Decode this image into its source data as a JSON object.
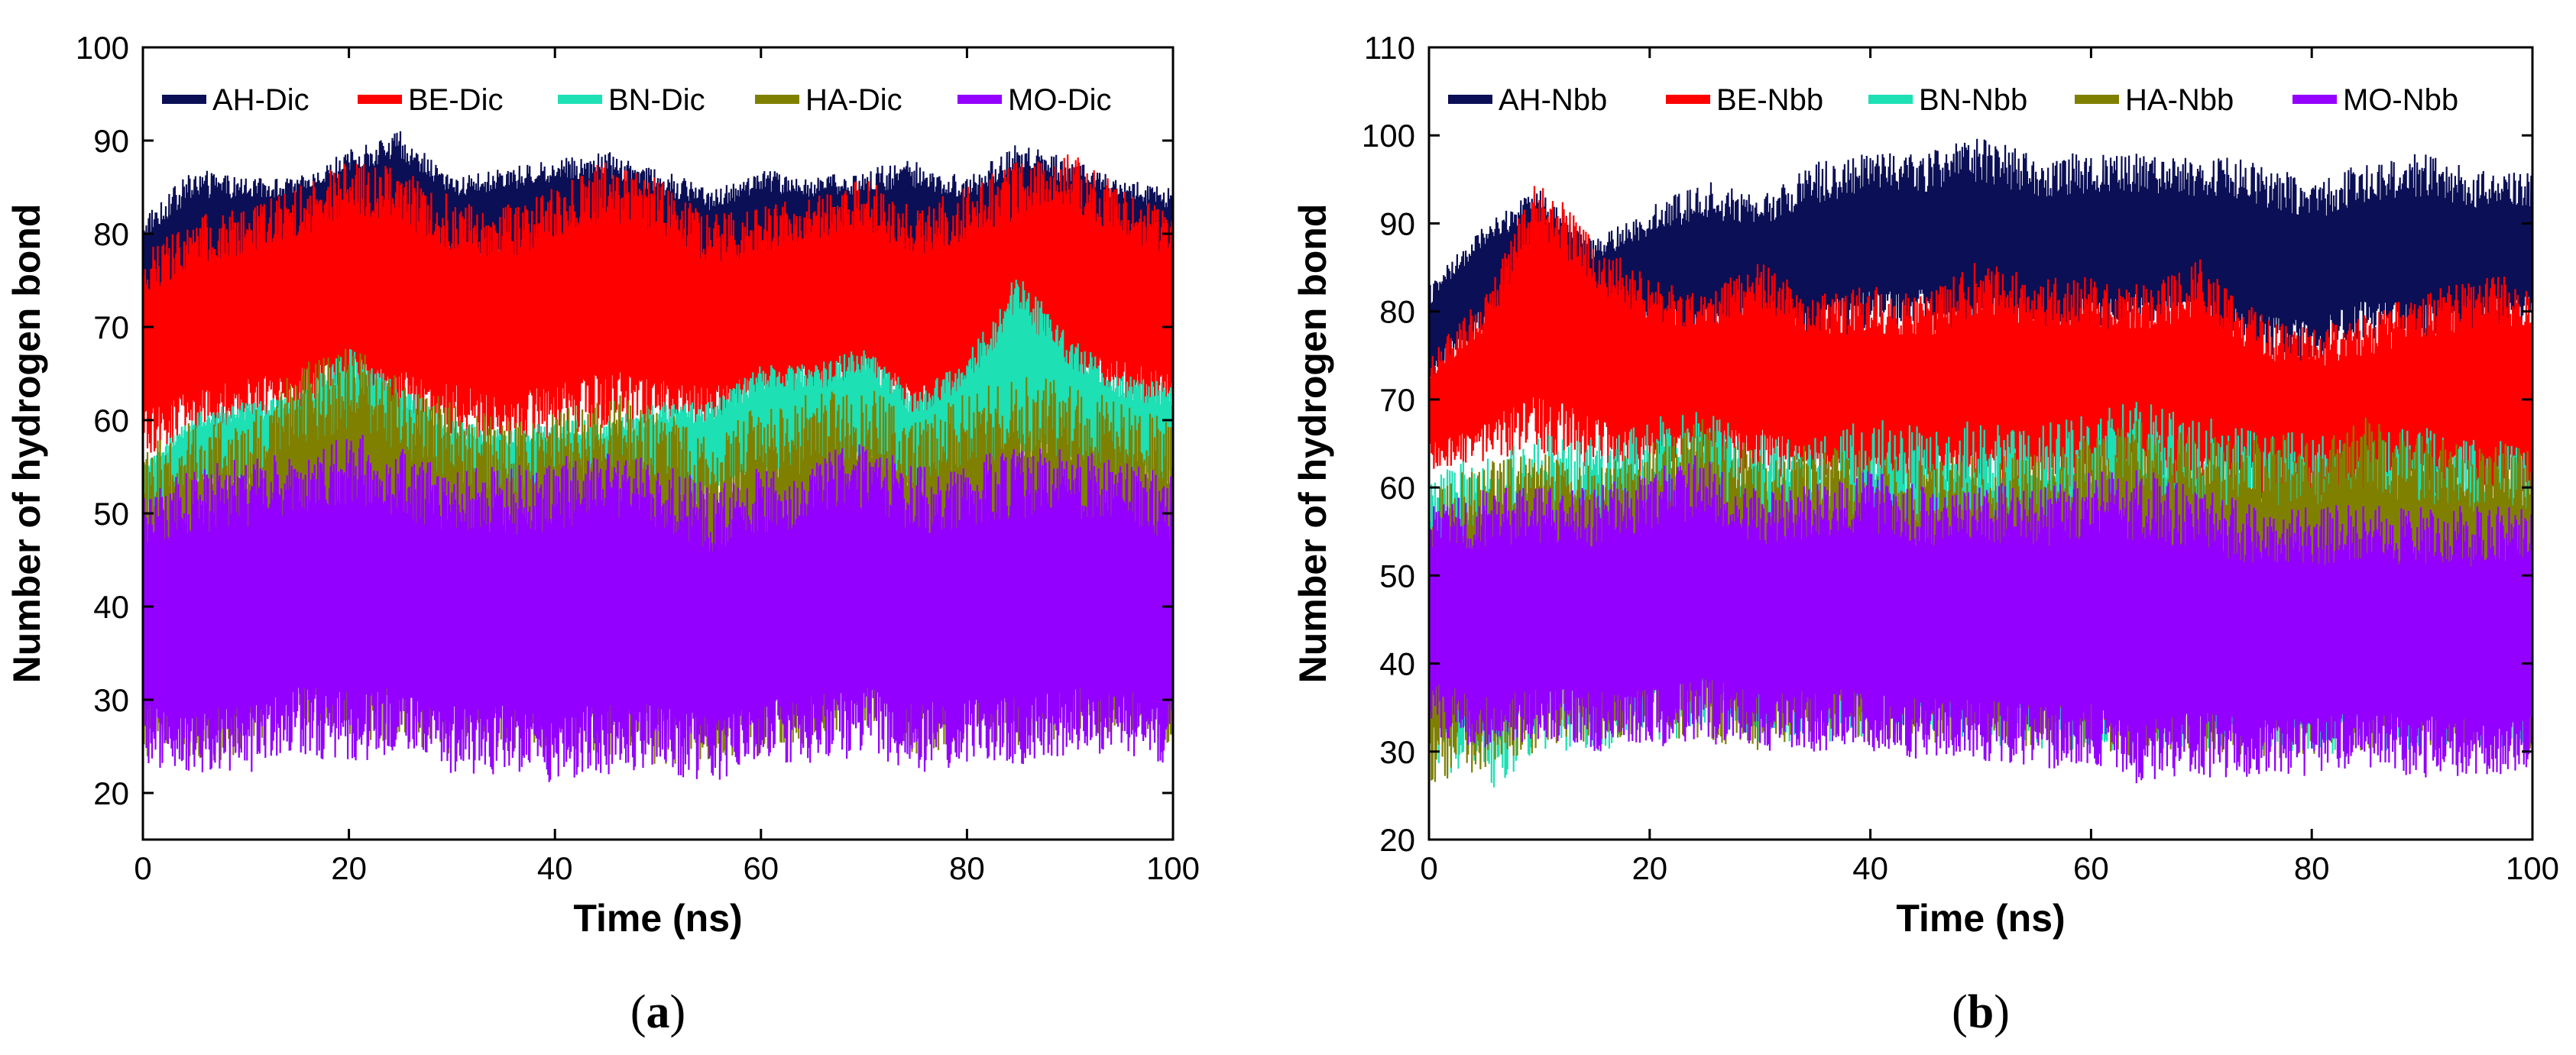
{
  "chart_data": [
    {
      "type": "line",
      "panel_label": "a",
      "xlabel": "Time (ns)",
      "ylabel": "Number of hydrogen bond",
      "xlim": [
        0,
        100
      ],
      "ylim": [
        15,
        100
      ],
      "xticks": [
        0,
        20,
        40,
        60,
        80,
        100
      ],
      "yticks": [
        20,
        30,
        40,
        50,
        60,
        70,
        80,
        90,
        100
      ],
      "legend_position": "top",
      "series": [
        {
          "name": "AH-Dic",
          "color": "#0b0f55",
          "x": [
            0,
            5,
            10,
            15,
            20,
            25,
            30,
            35,
            40,
            45,
            50,
            55,
            60,
            65,
            70,
            75,
            80,
            85,
            90,
            95,
            100
          ],
          "min": [
            70,
            73,
            76,
            77,
            78,
            78,
            77,
            76,
            77,
            76,
            75,
            74,
            75,
            76,
            75,
            74,
            75,
            76,
            76,
            75,
            74
          ],
          "max": [
            82,
            87,
            86,
            86,
            89,
            91,
            86,
            87,
            88,
            89,
            87,
            85,
            87,
            86,
            87,
            88,
            86,
            90,
            88,
            86,
            85
          ]
        },
        {
          "name": "BE-Dic",
          "color": "#ff0000",
          "x": [
            0,
            5,
            10,
            15,
            20,
            25,
            30,
            35,
            40,
            45,
            50,
            55,
            60,
            65,
            70,
            75,
            80,
            85,
            90,
            95,
            100
          ],
          "min": [
            56,
            58,
            59,
            60,
            61,
            59,
            58,
            57,
            58,
            59,
            59,
            58,
            60,
            61,
            62,
            58,
            59,
            60,
            61,
            61,
            60
          ],
          "max": [
            78,
            82,
            83,
            85,
            88,
            87,
            84,
            83,
            85,
            88,
            86,
            82,
            83,
            84,
            86,
            83,
            85,
            88,
            89,
            85,
            82
          ]
        },
        {
          "name": "BN-Dic",
          "color": "#1de0b4",
          "x": [
            0,
            5,
            10,
            15,
            20,
            25,
            30,
            35,
            40,
            45,
            50,
            55,
            60,
            65,
            70,
            75,
            80,
            85,
            90,
            95,
            100
          ],
          "min": [
            50,
            52,
            52,
            53,
            52,
            51,
            51,
            50,
            50,
            51,
            51,
            51,
            53,
            53,
            54,
            51,
            52,
            54,
            54,
            53,
            52
          ],
          "max": [
            55,
            61,
            62,
            63,
            68,
            64,
            60,
            59,
            60,
            60,
            62,
            62,
            66,
            66,
            68,
            63,
            67,
            76,
            69,
            65,
            64
          ]
        },
        {
          "name": "HA-Dic",
          "color": "#808000",
          "x": [
            0,
            5,
            10,
            15,
            20,
            25,
            30,
            35,
            40,
            45,
            50,
            55,
            60,
            65,
            70,
            75,
            80,
            85,
            90,
            95,
            100
          ],
          "min": [
            24,
            23,
            24,
            28,
            26,
            25,
            24,
            24,
            25,
            24,
            23,
            23,
            24,
            25,
            27,
            24,
            25,
            25,
            26,
            26,
            25
          ],
          "max": [
            57,
            60,
            60,
            66,
            68,
            65,
            62,
            60,
            61,
            63,
            62,
            58,
            62,
            63,
            64,
            60,
            63,
            65,
            64,
            62,
            60
          ]
        },
        {
          "name": "MO-Dic",
          "color": "#9400ff",
          "x": [
            0,
            5,
            10,
            15,
            20,
            25,
            30,
            35,
            40,
            45,
            50,
            55,
            60,
            65,
            70,
            75,
            80,
            85,
            90,
            95,
            100
          ],
          "min": [
            23,
            22,
            22,
            24,
            23,
            24,
            22,
            22,
            21,
            22,
            22,
            21,
            23,
            23,
            24,
            22,
            23,
            23,
            24,
            24,
            23
          ],
          "max": [
            52,
            55,
            56,
            57,
            59,
            57,
            55,
            55,
            56,
            57,
            56,
            53,
            55,
            56,
            58,
            55,
            56,
            57,
            57,
            56,
            54
          ]
        }
      ]
    },
    {
      "type": "line",
      "panel_label": "b",
      "xlabel": "Time (ns)",
      "ylabel": "Number of hydrogen bond",
      "xlim": [
        0,
        100
      ],
      "ylim": [
        20,
        110
      ],
      "xticks": [
        0,
        20,
        40,
        60,
        80,
        100
      ],
      "yticks": [
        20,
        30,
        40,
        50,
        60,
        70,
        80,
        90,
        100,
        110
      ],
      "legend_position": "top",
      "series": [
        {
          "name": "AH-Nbb",
          "color": "#0b0f55",
          "x": [
            0,
            5,
            10,
            15,
            20,
            25,
            30,
            35,
            40,
            45,
            50,
            55,
            60,
            65,
            70,
            75,
            80,
            85,
            90,
            95,
            100
          ],
          "min": [
            72,
            78,
            80,
            78,
            77,
            76,
            77,
            76,
            78,
            78,
            77,
            75,
            77,
            78,
            76,
            75,
            74,
            77,
            76,
            77,
            78
          ],
          "max": [
            83,
            90,
            94,
            88,
            92,
            95,
            93,
            97,
            98,
            98,
            100,
            98,
            98,
            98,
            98,
            97,
            95,
            97,
            98,
            96,
            96
          ]
        },
        {
          "name": "BE-Nbb",
          "color": "#ff0000",
          "x": [
            0,
            5,
            10,
            15,
            20,
            25,
            30,
            35,
            40,
            45,
            50,
            55,
            60,
            65,
            70,
            75,
            80,
            85,
            90,
            95,
            100
          ],
          "min": [
            62,
            63,
            64,
            62,
            61,
            62,
            61,
            60,
            58,
            58,
            59,
            58,
            58,
            59,
            58,
            57,
            56,
            57,
            58,
            58,
            58
          ],
          "max": [
            75,
            82,
            96,
            88,
            84,
            82,
            86,
            82,
            83,
            82,
            86,
            84,
            84,
            83,
            86,
            80,
            78,
            80,
            82,
            84,
            84
          ]
        },
        {
          "name": "BN-Nbb",
          "color": "#1de0b4",
          "x": [
            0,
            5,
            10,
            15,
            20,
            25,
            30,
            35,
            40,
            45,
            50,
            55,
            60,
            65,
            70,
            75,
            80,
            85,
            90,
            95,
            100
          ],
          "min": [
            28,
            25,
            30,
            30,
            31,
            32,
            31,
            31,
            31,
            32,
            31,
            30,
            30,
            30,
            30,
            30,
            29,
            30,
            30,
            30,
            30
          ],
          "max": [
            62,
            64,
            66,
            66,
            68,
            69,
            66,
            66,
            68,
            67,
            68,
            67,
            69,
            70,
            68,
            67,
            66,
            66,
            67,
            66,
            65
          ]
        },
        {
          "name": "HA-Nbb",
          "color": "#808000",
          "x": [
            0,
            5,
            10,
            15,
            20,
            25,
            30,
            35,
            40,
            45,
            50,
            55,
            60,
            65,
            70,
            75,
            80,
            85,
            90,
            95,
            100
          ],
          "min": [
            26,
            28,
            30,
            31,
            32,
            31,
            30,
            31,
            31,
            31,
            31,
            30,
            30,
            29,
            30,
            29,
            29,
            30,
            30,
            30,
            30
          ],
          "max": [
            60,
            63,
            64,
            63,
            65,
            68,
            64,
            65,
            64,
            63,
            64,
            64,
            66,
            68,
            66,
            66,
            66,
            68,
            66,
            65,
            65
          ]
        },
        {
          "name": "MO-Nbb",
          "color": "#9400ff",
          "x": [
            0,
            5,
            10,
            15,
            20,
            25,
            30,
            35,
            40,
            45,
            50,
            55,
            60,
            65,
            70,
            75,
            80,
            85,
            90,
            95,
            100
          ],
          "min": [
            32,
            30,
            31,
            30,
            30,
            31,
            30,
            30,
            30,
            29,
            29,
            28,
            28,
            26,
            27,
            27,
            27,
            28,
            27,
            27,
            28
          ],
          "max": [
            58,
            60,
            60,
            60,
            62,
            64,
            60,
            61,
            62,
            60,
            61,
            60,
            62,
            62,
            60,
            58,
            58,
            58,
            58,
            58,
            58
          ]
        }
      ]
    }
  ]
}
